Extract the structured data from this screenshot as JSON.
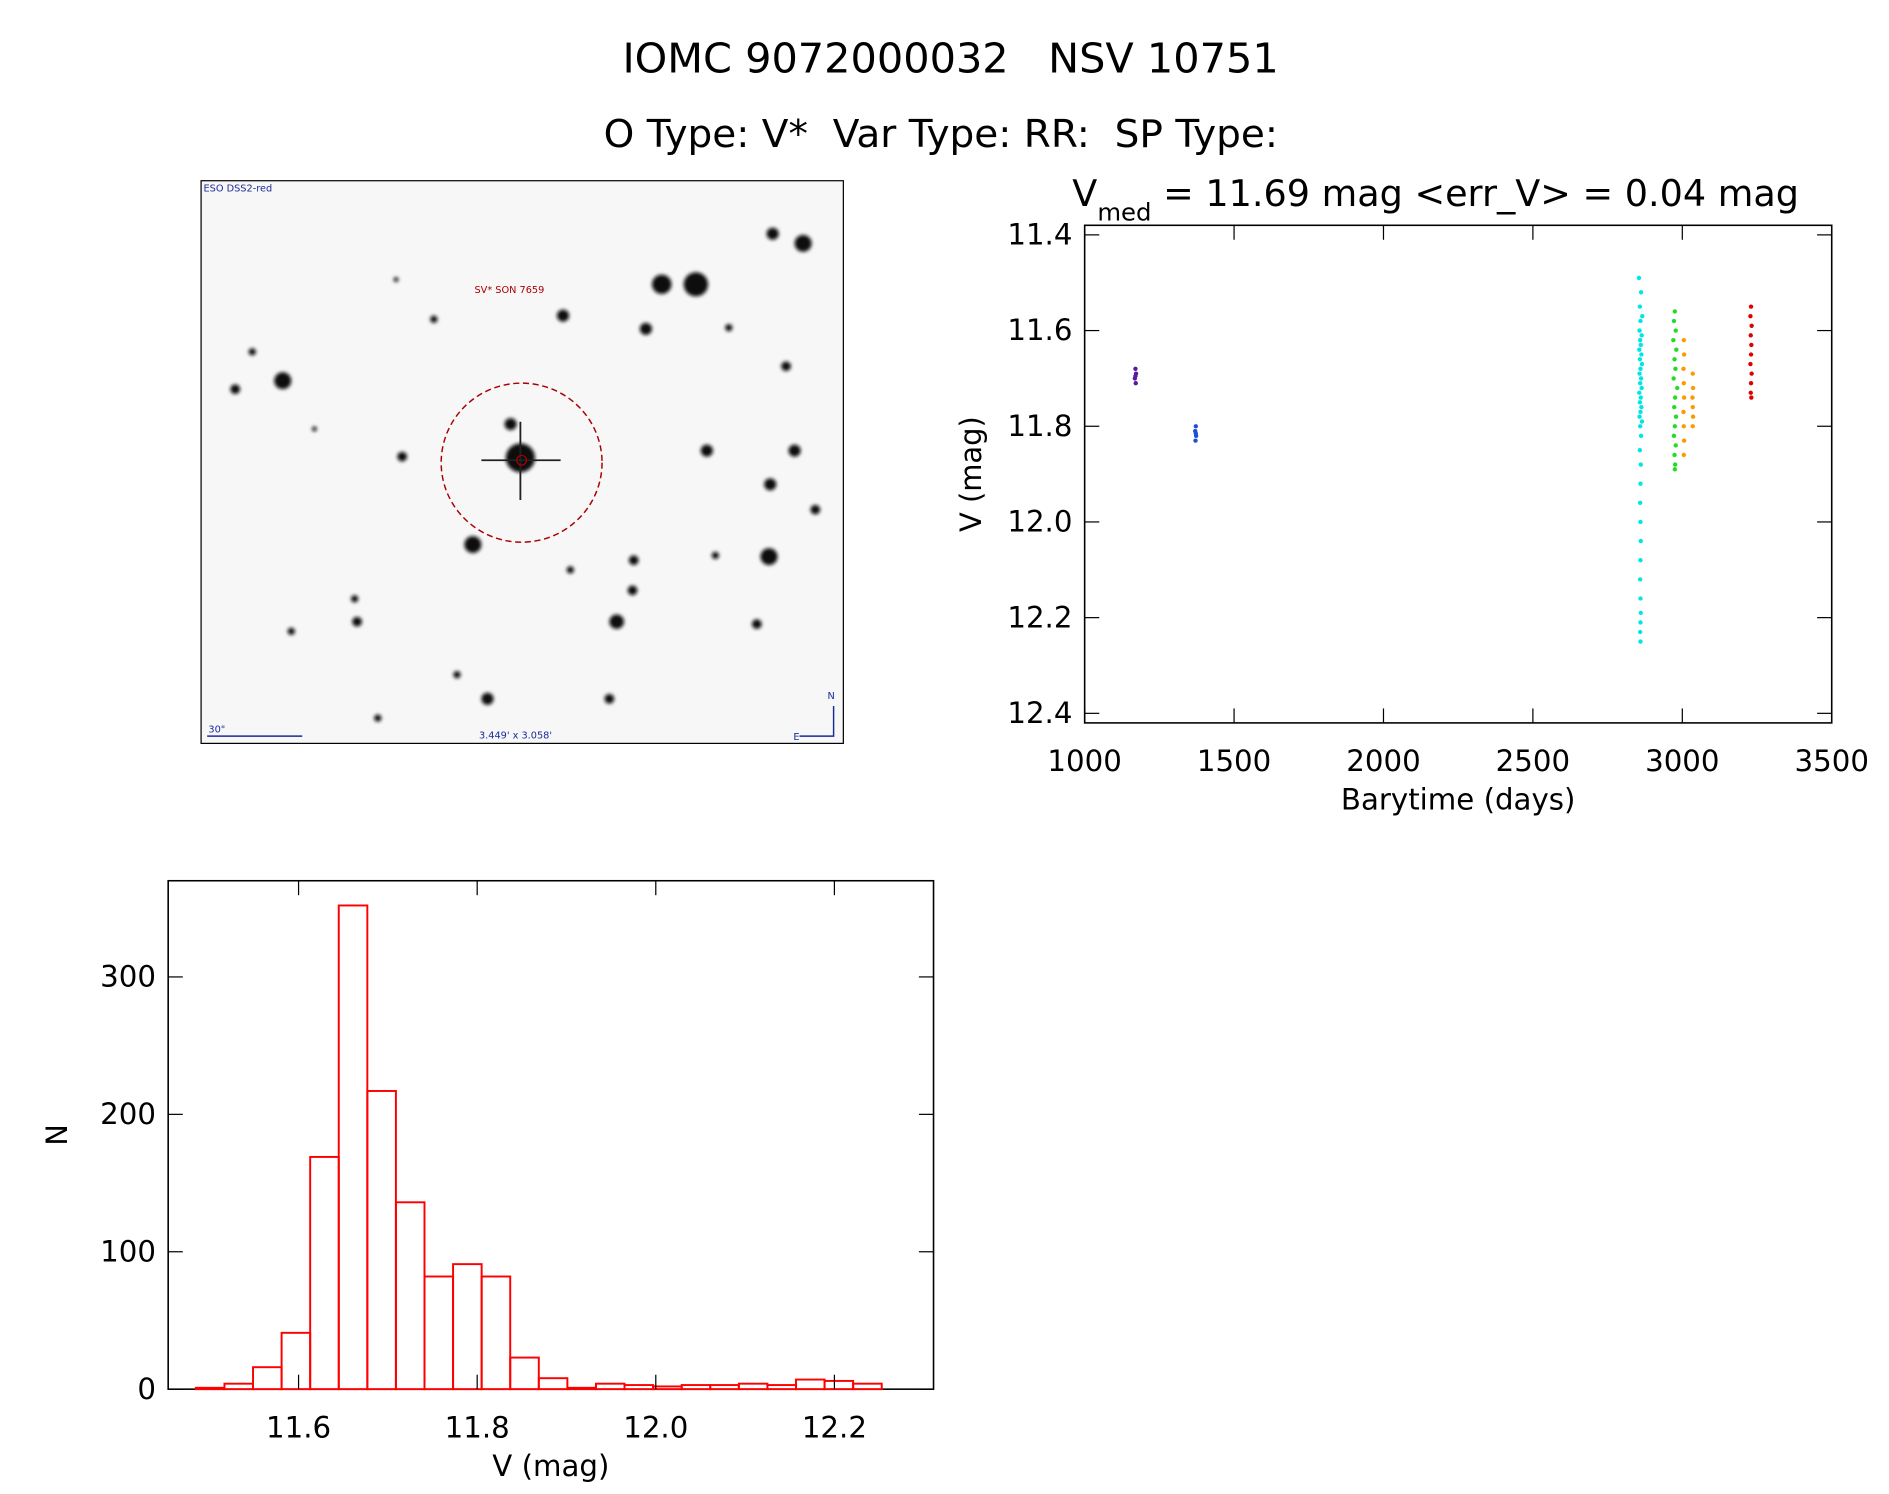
{
  "header": {
    "title": "IOMC 9072000032   NSV 10751",
    "subtitle": "O Type: V*  Var Type: RR:  SP Type:"
  },
  "image": {
    "labels": [
      "ESO DSS2-red",
      "SV* SON 7659",
      "30\"",
      "3.449' x 3.058'",
      "N",
      "E"
    ]
  },
  "chart_data": [
    {
      "type": "scatter",
      "title": [
        "V",
        "med",
        " = 11.69 mag <err_V> = 0.04 mag"
      ],
      "xlabel": "Barytime (days)",
      "ylabel": "V (mag)",
      "xlim": [
        1000,
        3500
      ],
      "xticks": [
        1000,
        1500,
        2000,
        2500,
        3000,
        3500
      ],
      "ylim": [
        12.42,
        11.38
      ],
      "yticks": [
        11.4,
        11.6,
        11.8,
        {
          "value": 12,
          "label": "12.0"
        },
        12.2,
        12.4
      ],
      "series": [
        {
          "color": "#5a1a9e",
          "x": [
            1170,
            1172,
            1168,
            1171,
            1170
          ],
          "values": [
            11.68,
            11.69,
            11.7,
            11.71,
            11.695
          ]
        },
        {
          "color": "#1f4fd6",
          "x": [
            1372,
            1370,
            1373,
            1371,
            1372
          ],
          "values": [
            11.8,
            11.81,
            11.82,
            11.83,
            11.815
          ]
        },
        {
          "color": "#00e5e5",
          "x": [
            2855,
            2862,
            2858,
            2866,
            2860,
            2857,
            2864,
            2859,
            2861,
            2856,
            2863,
            2858,
            2865,
            2860,
            2857,
            2862,
            2859,
            2864,
            2856,
            2861,
            2858,
            2863,
            2860,
            2857,
            2865,
            2859,
            2862,
            2858,
            2861,
            2860,
            2859,
            2860,
            2861,
            2860,
            2859,
            2860,
            2861,
            2860,
            2859,
            2860
          ],
          "values": [
            11.49,
            11.52,
            11.55,
            11.57,
            11.58,
            11.6,
            11.61,
            11.62,
            11.63,
            11.64,
            11.65,
            11.66,
            11.67,
            11.68,
            11.69,
            11.7,
            11.71,
            11.72,
            11.73,
            11.74,
            11.75,
            11.76,
            11.77,
            11.78,
            11.79,
            11.8,
            11.82,
            11.85,
            11.88,
            11.92,
            11.96,
            12.0,
            12.04,
            12.08,
            12.12,
            12.16,
            12.19,
            12.21,
            12.23,
            12.25
          ]
        },
        {
          "color": "#22dd22",
          "x": [
            2975,
            2972,
            2978,
            2970,
            2980,
            2974,
            2977,
            2971,
            2983,
            2976,
            2973,
            2979,
            2975,
            2972,
            2978,
            2974,
            2976,
            2975
          ],
          "values": [
            11.56,
            11.58,
            11.6,
            11.62,
            11.64,
            11.66,
            11.68,
            11.7,
            11.72,
            11.74,
            11.76,
            11.78,
            11.8,
            11.82,
            11.84,
            11.86,
            11.88,
            11.89
          ]
        },
        {
          "color": "#ff9900",
          "x": [
            3005,
            3006,
            3004,
            3005,
            3006,
            3004,
            3005,
            3006,
            3005,
            3035,
            3036,
            3034,
            3035,
            3036,
            3035
          ],
          "values": [
            11.62,
            11.65,
            11.68,
            11.71,
            11.74,
            11.77,
            11.8,
            11.83,
            11.86,
            11.69,
            11.72,
            11.74,
            11.76,
            11.78,
            11.8
          ]
        },
        {
          "color": "#e00000",
          "x": [
            3230,
            3228,
            3232,
            3229,
            3231,
            3230,
            3228,
            3232,
            3230,
            3229,
            3231
          ],
          "values": [
            11.55,
            11.57,
            11.59,
            11.61,
            11.63,
            11.65,
            11.67,
            11.69,
            11.71,
            11.73,
            11.74
          ]
        }
      ]
    },
    {
      "type": "histogram",
      "color": "#ff0000",
      "xlabel": "V (mag)",
      "ylabel": "N",
      "xlim": [
        11.454,
        12.311
      ],
      "xticks": [
        11.6,
        11.8,
        {
          "value": 12,
          "label": "12.0"
        },
        12.2
      ],
      "ylim": [
        0,
        370
      ],
      "yticks": [
        0,
        100,
        200,
        300
      ],
      "bins": [
        11.485,
        11.517,
        11.549,
        11.581,
        11.613,
        11.645,
        11.677,
        11.709,
        11.741,
        11.773,
        11.805,
        11.837,
        11.869,
        11.901,
        11.933,
        11.965,
        11.997,
        12.029,
        12.061,
        12.093,
        12.125,
        12.157,
        12.189,
        12.221,
        12.253
      ],
      "values": [
        1,
        4,
        16,
        41,
        169,
        352,
        217,
        136,
        82,
        91,
        82,
        23,
        8,
        1,
        4,
        3,
        2,
        3,
        3,
        4,
        3,
        7,
        6,
        4
      ]
    }
  ]
}
